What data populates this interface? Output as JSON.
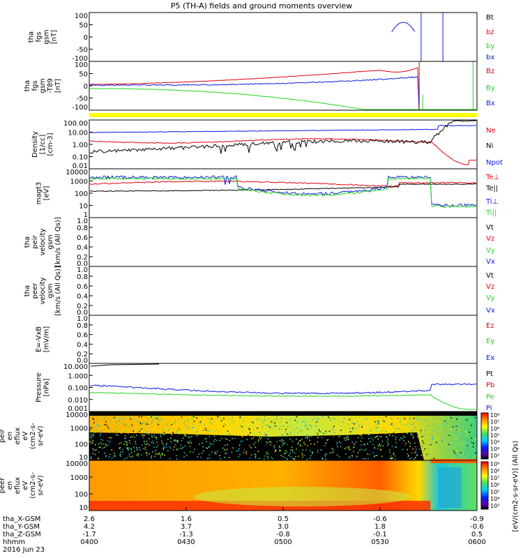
{
  "title": "P5 (TH-A) fields and ground moments overview",
  "colors": {
    "red": "#e8000b",
    "green": "#22d41e",
    "blue": "#0a19e6",
    "black": "#000000",
    "yellow": "#ffff00"
  },
  "chart_data": {
    "type": "line",
    "x_ticks": {
      "tha_X-GSM": [
        "2.6",
        "1.6",
        "0.5",
        "-0.6",
        "-0.9"
      ],
      "tha_Y-GSM": [
        "4.2",
        "3.7",
        "3.0",
        "1.8",
        "-0.6"
      ],
      "tha_Z-GSM": [
        "-1.7",
        "-1.3",
        "-0.8",
        "-0.1",
        "0.5"
      ],
      "hhmm": [
        "0400",
        "0430",
        "0500",
        "0530",
        "0600"
      ]
    },
    "x_labels": [
      "tha_X-GSM",
      "tha_Y-GSM",
      "tha_Z-GSM",
      "hhmm",
      "2016 Jun 23"
    ],
    "panels": [
      {
        "id": "fgs",
        "ylabel_lines": [
          "tha",
          "fgs",
          "gsm",
          "[nT]"
        ],
        "yticks": [
          "100",
          "50",
          "0",
          "-50",
          "-100"
        ],
        "legend": [
          "Bt",
          "bz",
          "by",
          "bx"
        ],
        "legend_colors": [
          "black",
          "red",
          "green",
          "blue"
        ]
      },
      {
        "id": "fgs-lp",
        "ylabel_lines": [
          "tha",
          "fgs",
          "gsm",
          "-T89",
          "[nT]"
        ],
        "yticks": [
          "100",
          "50",
          "0",
          "-50",
          "-100"
        ],
        "legend": [
          "Bz",
          "By",
          "Bx"
        ],
        "legend_colors": [
          "red",
          "green",
          "blue"
        ]
      },
      {
        "id": "density",
        "ylabel_lines": [
          "Density",
          "[1/cc]",
          "[cm-3]"
        ],
        "yticks": [
          "100.00",
          "10.00",
          "1.00",
          "0.10",
          "0.01"
        ],
        "legend": [
          "Ne",
          "Ni",
          "Npot"
        ],
        "legend_colors": [
          "red",
          "black",
          "blue"
        ]
      },
      {
        "id": "temp",
        "ylabel_lines": [
          "magt3",
          "[eV]"
        ],
        "yticks": [
          "10000",
          "1000",
          "100",
          "10",
          "1"
        ],
        "legend": [
          "Te⊥",
          "Te||",
          "Ti⊥",
          "Ti||"
        ],
        "legend_colors": [
          "red",
          "black",
          "blue",
          "green"
        ]
      },
      {
        "id": "peir-vel",
        "ylabel_lines": [
          "tha",
          "peir",
          "velocity",
          "gsm",
          "[km/s (All Qs)]"
        ],
        "yticks": [
          "1.0",
          "0.8",
          "0.6",
          "0.4",
          "0.2",
          "0.0"
        ],
        "legend": [
          "Vt",
          "Vz",
          "Vy",
          "Vx"
        ],
        "legend_colors": [
          "black",
          "red",
          "green",
          "blue"
        ]
      },
      {
        "id": "peer-vel",
        "ylabel_lines": [
          "tha",
          "peer",
          "velocity",
          "gsm",
          "[km/s (All Qs)]"
        ],
        "yticks": [
          "1.0",
          "0.8",
          "0.6",
          "0.4",
          "0.2",
          "0.0"
        ],
        "legend": [
          "Vt",
          "Vz",
          "Vy",
          "Vx"
        ],
        "legend_colors": [
          "black",
          "red",
          "green",
          "blue"
        ]
      },
      {
        "id": "efield",
        "ylabel_lines": [
          "E=-VxB",
          "[mV/m]"
        ],
        "yticks": [
          "1.0",
          "0.8",
          "0.6",
          "0.4",
          "0.2",
          "0.0"
        ],
        "legend": [
          "Ez",
          "Ey",
          "Ex"
        ],
        "legend_colors": [
          "red",
          "green",
          "blue"
        ]
      },
      {
        "id": "pressure",
        "ylabel_lines": [
          "Pressure",
          "[nPa]"
        ],
        "yticks": [
          "10.000",
          "1.000",
          "0.100",
          "0.010",
          "0.001"
        ],
        "legend": [
          "Pt",
          "Pb",
          "Pe",
          "Pi"
        ],
        "legend_colors": [
          "black",
          "red",
          "green",
          "blue"
        ]
      },
      {
        "id": "peir-spec",
        "ylabel_lines": [
          "tha",
          "peir",
          "en",
          "eflux",
          "eV",
          "(cm2-s-",
          "sr-eV)"
        ],
        "yticks": [
          "10000",
          "1000",
          "100",
          "10"
        ]
      },
      {
        "id": "peer-spec",
        "ylabel_lines": [
          "tha",
          "peer",
          "en",
          "eflux",
          "eV",
          "(cm2-s-",
          "sr-eV)"
        ],
        "yticks": [
          "10000",
          "1000",
          "100",
          "10"
        ]
      }
    ],
    "colorbar": {
      "label": "[eV/(cm2-s-sr-eV)] (All Qs)",
      "peir_ticks": [
        "10⁸",
        "10⁷",
        "10⁶",
        "10⁵",
        "10⁴",
        "10³",
        "10²"
      ],
      "peer_ticks": [
        "10⁹",
        "10⁸",
        "10⁷",
        "10⁶",
        "10⁵",
        "10⁴",
        "10³"
      ]
    }
  }
}
